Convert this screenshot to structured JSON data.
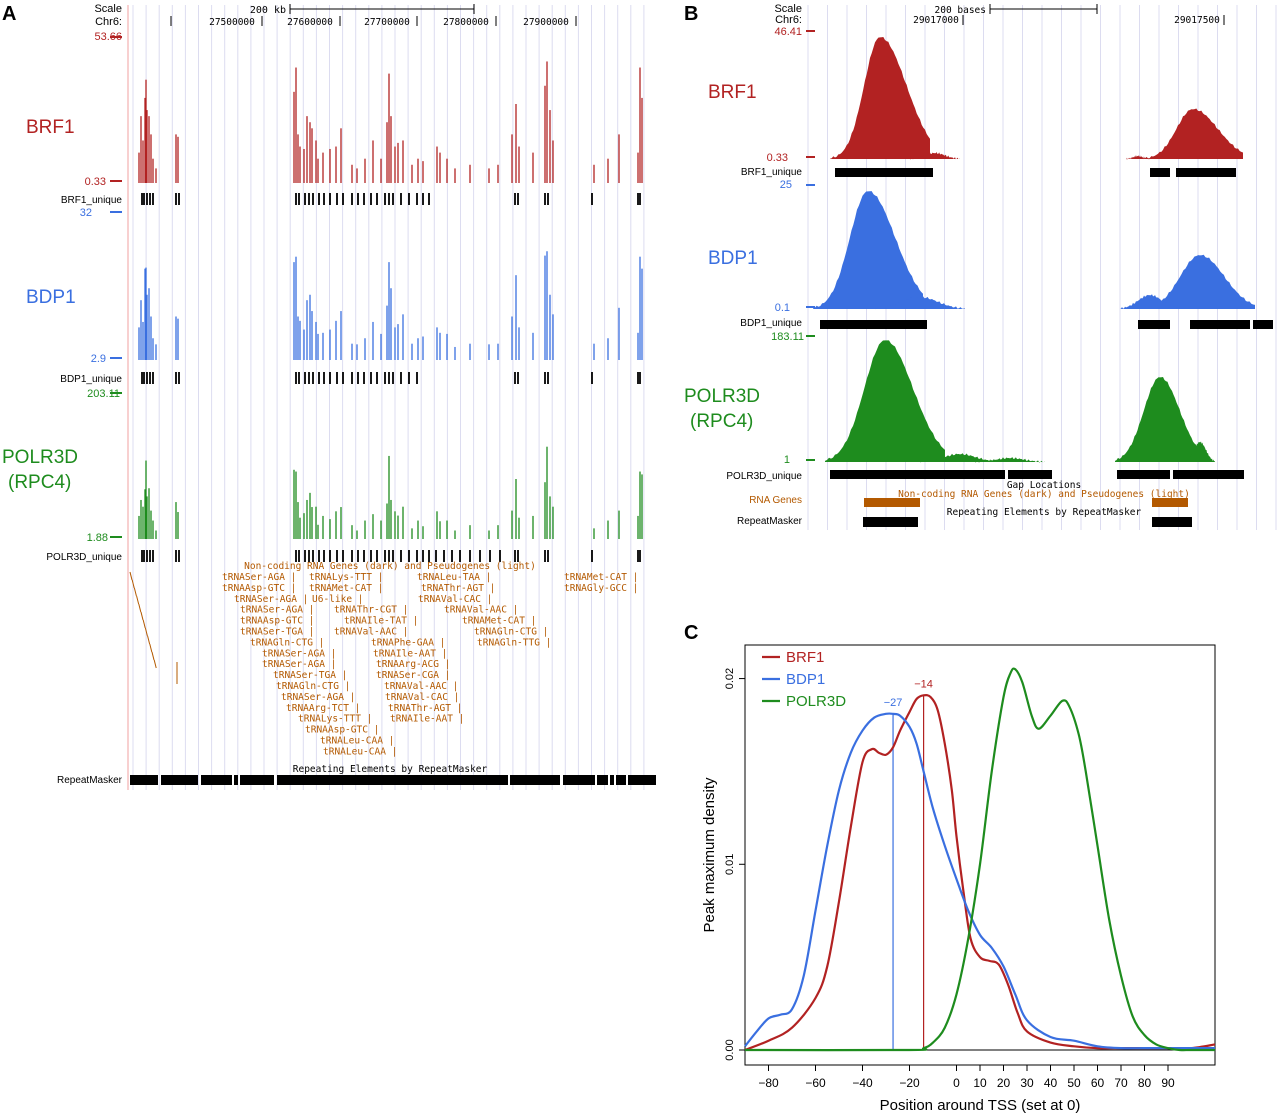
{
  "colors": {
    "brf1": "#b22222",
    "bdp1": "#3a6fe0",
    "polr3d": "#1e8c1e",
    "rna": "#b35900",
    "black": "#000000",
    "grid": "#dcdcf0"
  },
  "panelA": {
    "letter": "A",
    "scale_label": "Scale",
    "scale_value": "200 kb",
    "chrom_label": "Chr6:",
    "coords": [
      "27500000",
      "27600000",
      "27700000",
      "27800000",
      "27900000"
    ],
    "tracks": {
      "brf1": {
        "name": "BRF1",
        "max": "53.66",
        "min": "0.33",
        "unique_label": "BRF1_unique"
      },
      "bdp1": {
        "name": "BDP1",
        "max": "32",
        "min": "2.9",
        "unique_label": "BDP1_unique"
      },
      "polr3d": {
        "name_line1": "POLR3D",
        "name_line2": "(RPC4)",
        "max": "203.11",
        "min": "1.88",
        "unique_label": "POLR3D_unique"
      }
    },
    "rna_header": "Non-coding RNA Genes (dark) and Pseudogenes (light)",
    "rna_genes": [
      [
        "tRNASer-AGA",
        "tRNALys-TTT",
        "tRNALeu-TAA",
        "tRNAMet-CAT"
      ],
      [
        "tRNAAsp-GTC",
        "tRNAMet-CAT",
        "tRNAThr-AGT",
        "tRNAGly-GCC"
      ],
      [
        "tRNASer-AGA",
        "U6-like",
        "tRNAVal-CAC",
        ""
      ],
      [
        "tRNASer-AGA",
        "tRNAThr-CGT",
        "tRNAVal-AAC",
        ""
      ],
      [
        "tRNAAsp-GTC",
        "tRNAIle-TAT",
        "tRNAMet-CAT",
        ""
      ],
      [
        "tRNASer-TGA",
        "tRNAVal-AAC",
        "tRNAGln-CTG",
        ""
      ],
      [
        "tRNAGln-CTG",
        "tRNAPhe-GAA",
        "tRNAGln-TTG",
        ""
      ],
      [
        "tRNASer-AGA",
        "tRNAIle-AAT",
        "",
        ""
      ],
      [
        "tRNASer-AGA",
        "tRNAArg-ACG",
        "",
        ""
      ],
      [
        "tRNASer-TGA",
        "tRNASer-CGA",
        "",
        ""
      ],
      [
        "tRNAGln-CTG",
        "tRNAVal-AAC",
        "",
        ""
      ],
      [
        "tRNASer-AGA",
        "tRNAVal-CAC",
        "",
        ""
      ],
      [
        "tRNAArg-TCT",
        "tRNAThr-AGT",
        "",
        ""
      ],
      [
        "tRNALys-TTT",
        "tRNAIle-AAT",
        "",
        ""
      ],
      [
        "tRNAAsp-GTC",
        "",
        "",
        ""
      ],
      [
        "tRNALeu-CAA",
        "",
        "",
        ""
      ],
      [
        "tRNALeu-CAA",
        "",
        "",
        ""
      ]
    ],
    "repeat_header": "Repeating Elements by RepeatMasker",
    "repeat_label": "RepeatMasker"
  },
  "panelB": {
    "letter": "B",
    "scale_label": "Scale",
    "scale_value": "200 bases",
    "chrom_label": "Chr6:",
    "coords": [
      "29017000",
      "29017500"
    ],
    "tracks": {
      "brf1": {
        "name": "BRF1",
        "max": "46.41",
        "min": "0.33",
        "unique_label": "BRF1_unique"
      },
      "bdp1": {
        "name": "BDP1",
        "max": "25",
        "min": "0.1",
        "unique_label": "BDP1_unique"
      },
      "polr3d": {
        "name_line1": "POLR3D",
        "name_line2": "(RPC4)",
        "max": "183.11",
        "min": "1",
        "unique_label": "POLR3D_unique"
      }
    },
    "gap_header": "Gap Locations",
    "rna_label": "RNA Genes",
    "rna_header": "Non-coding RNA Genes (dark) and Pseudogenes (light)",
    "repeat_header": "Repeating Elements by RepeatMasker",
    "repeat_label": "RepeatMasker"
  },
  "chart_data": {
    "type": "line",
    "letter": "C",
    "title": "",
    "xlabel": "Position around TSS (set at 0)",
    "ylabel": "Peak maximum density",
    "xlim": [
      -90,
      110
    ],
    "ylim": [
      0,
      0.021
    ],
    "xticks": [
      -80,
      -60,
      -40,
      -20,
      0,
      10,
      20,
      30,
      40,
      50,
      60,
      70,
      80,
      90
    ],
    "yticks": [
      0.0,
      0.01,
      0.02
    ],
    "ytick_labels": [
      "0.00",
      "0.01",
      "0.02"
    ],
    "legend": "top-left",
    "series": [
      {
        "name": "BRF1",
        "x": [
          -90,
          -80,
          -70,
          -60,
          -55,
          -50,
          -45,
          -40,
          -36,
          -33,
          -30,
          -27,
          -24,
          -20,
          -17,
          -14,
          -11,
          -8,
          -5,
          -2,
          0,
          3,
          6,
          10,
          14,
          18,
          22,
          26,
          30,
          40,
          50,
          60,
          70,
          80,
          90,
          100,
          110
        ],
        "y": [
          0.0,
          0.0005,
          0.0012,
          0.0028,
          0.0045,
          0.008,
          0.012,
          0.0155,
          0.0162,
          0.016,
          0.0159,
          0.0163,
          0.0172,
          0.0182,
          0.0189,
          0.0191,
          0.019,
          0.0183,
          0.0165,
          0.014,
          0.0115,
          0.0085,
          0.006,
          0.005,
          0.0048,
          0.0046,
          0.0035,
          0.002,
          0.001,
          0.0004,
          0.0002,
          0.0001,
          0.0001,
          0.0001,
          0.0001,
          0.0001,
          0.0003
        ]
      },
      {
        "name": "BDP1",
        "x": [
          -90,
          -85,
          -80,
          -75,
          -70,
          -65,
          -60,
          -55,
          -50,
          -45,
          -40,
          -35,
          -30,
          -27,
          -24,
          -20,
          -17,
          -14,
          -10,
          -5,
          0,
          5,
          10,
          15,
          20,
          25,
          30,
          40,
          50,
          60,
          70,
          80,
          90,
          100,
          110
        ],
        "y": [
          0.0002,
          0.001,
          0.0017,
          0.0019,
          0.0022,
          0.004,
          0.0075,
          0.011,
          0.014,
          0.016,
          0.0172,
          0.0179,
          0.0181,
          0.0181,
          0.018,
          0.0174,
          0.0165,
          0.015,
          0.013,
          0.011,
          0.0092,
          0.0075,
          0.0062,
          0.0055,
          0.0045,
          0.003,
          0.0016,
          0.0007,
          0.0005,
          0.0002,
          0.0001,
          0.0001,
          0.0001,
          0.0001,
          0.0001
        ]
      },
      {
        "name": "POLR3D",
        "x": [
          -90,
          -20,
          -14,
          -10,
          -5,
          0,
          5,
          10,
          15,
          20,
          23,
          25,
          28,
          32,
          35,
          40,
          45,
          48,
          52,
          55,
          60,
          65,
          70,
          75,
          80,
          85,
          90,
          95,
          100,
          110
        ],
        "y": [
          0.0,
          0.0,
          0.0001,
          0.0004,
          0.0012,
          0.003,
          0.006,
          0.01,
          0.015,
          0.019,
          0.0203,
          0.0205,
          0.0198,
          0.018,
          0.0173,
          0.018,
          0.0188,
          0.0185,
          0.017,
          0.015,
          0.011,
          0.007,
          0.004,
          0.0018,
          0.0008,
          0.0003,
          0.0001,
          0.0,
          0.0,
          0.0
        ]
      }
    ],
    "annotations": [
      {
        "label": "−27",
        "x": -27,
        "series": "BDP1"
      },
      {
        "label": "−14",
        "x": -14,
        "series": "BRF1"
      }
    ]
  }
}
